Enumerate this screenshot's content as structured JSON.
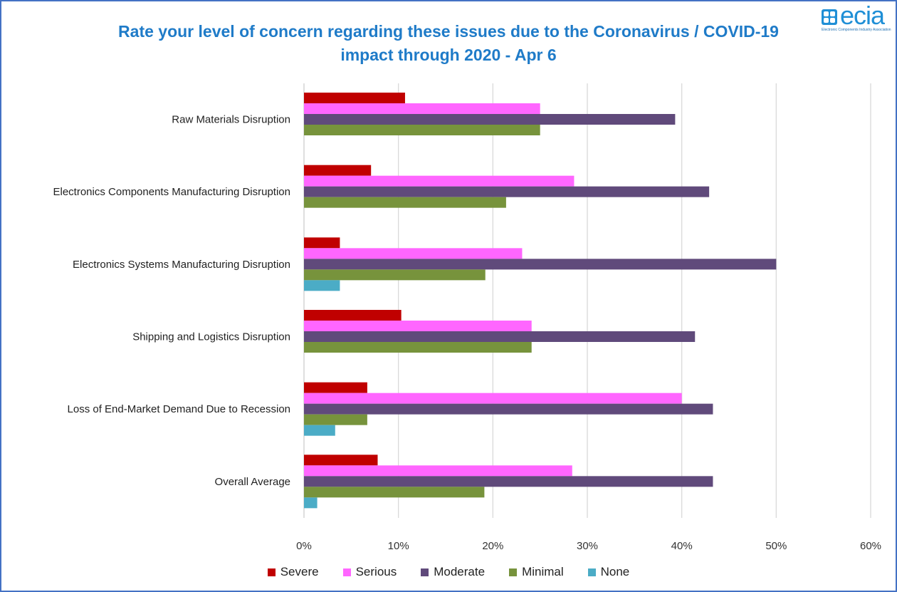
{
  "title": "Rate your level of concern regarding these issues due to the Coronavirus / COVID-19 impact through 2020 - Apr 6",
  "logo": {
    "word": "ecia",
    "subtitle": "Electronic Components Industry Association"
  },
  "chart_data": {
    "type": "bar",
    "orientation": "horizontal",
    "title": "Rate your level of concern regarding these issues due to the Coronavirus / COVID-19 impact through 2020 - Apr 6",
    "categories": [
      "Raw Materials Disruption",
      "Electronics Components Manufacturing Disruption",
      "Electronics Systems Manufacturing Disruption",
      "Shipping and Logistics Disruption",
      "Loss of End-Market Demand Due to Recession",
      "Overall Average"
    ],
    "series": [
      {
        "name": "Severe",
        "color": "#c00000",
        "values": [
          10.7,
          7.1,
          3.8,
          10.3,
          6.7,
          7.8
        ]
      },
      {
        "name": "Serious",
        "color": "#ff66ff",
        "values": [
          25.0,
          28.6,
          23.1,
          24.1,
          40.0,
          28.4
        ]
      },
      {
        "name": "Moderate",
        "color": "#604a7b",
        "values": [
          39.3,
          42.9,
          50.0,
          41.4,
          43.3,
          43.3
        ]
      },
      {
        "name": "Minimal",
        "color": "#77933c",
        "values": [
          25.0,
          21.4,
          19.2,
          24.1,
          6.7,
          19.1
        ]
      },
      {
        "name": "None",
        "color": "#4bacc6",
        "values": [
          0,
          0,
          3.8,
          0,
          3.3,
          1.4
        ]
      }
    ],
    "xlim": [
      0,
      60
    ],
    "x_ticks": [
      "0%",
      "10%",
      "20%",
      "30%",
      "40%",
      "50%",
      "60%"
    ],
    "grid": true,
    "legend_position": "bottom"
  }
}
